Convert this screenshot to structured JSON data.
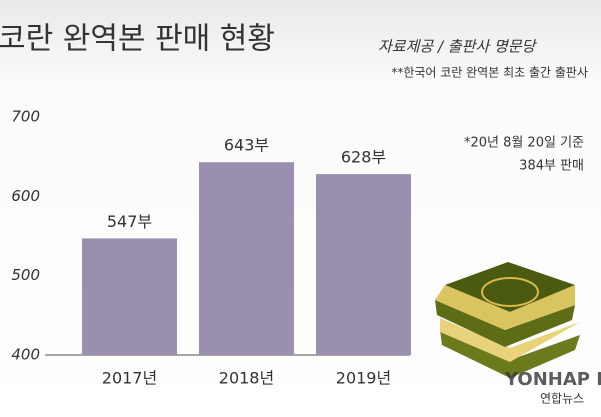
{
  "chart_data": {
    "type": "bar",
    "title": "코란 완역본 판매 현황",
    "source": "자료제공 / 출판사 명문당",
    "note": "**한국어 코란 완역본 최초 출간 출판사",
    "annotations": [
      "*20년 8월 20일 기준",
      "384부 판매"
    ],
    "watermark": [
      "YONHAP NEWS",
      "연합뉴스"
    ],
    "categories": [
      "2017년",
      "2018년",
      "2019년"
    ],
    "values": [
      547,
      643,
      628
    ],
    "value_labels": [
      "547부",
      "643부",
      "628부"
    ],
    "color": "#9a8fae",
    "ylim": [
      400,
      700
    ],
    "yticks": [
      400,
      500,
      600,
      700
    ],
    "grid": false
  }
}
